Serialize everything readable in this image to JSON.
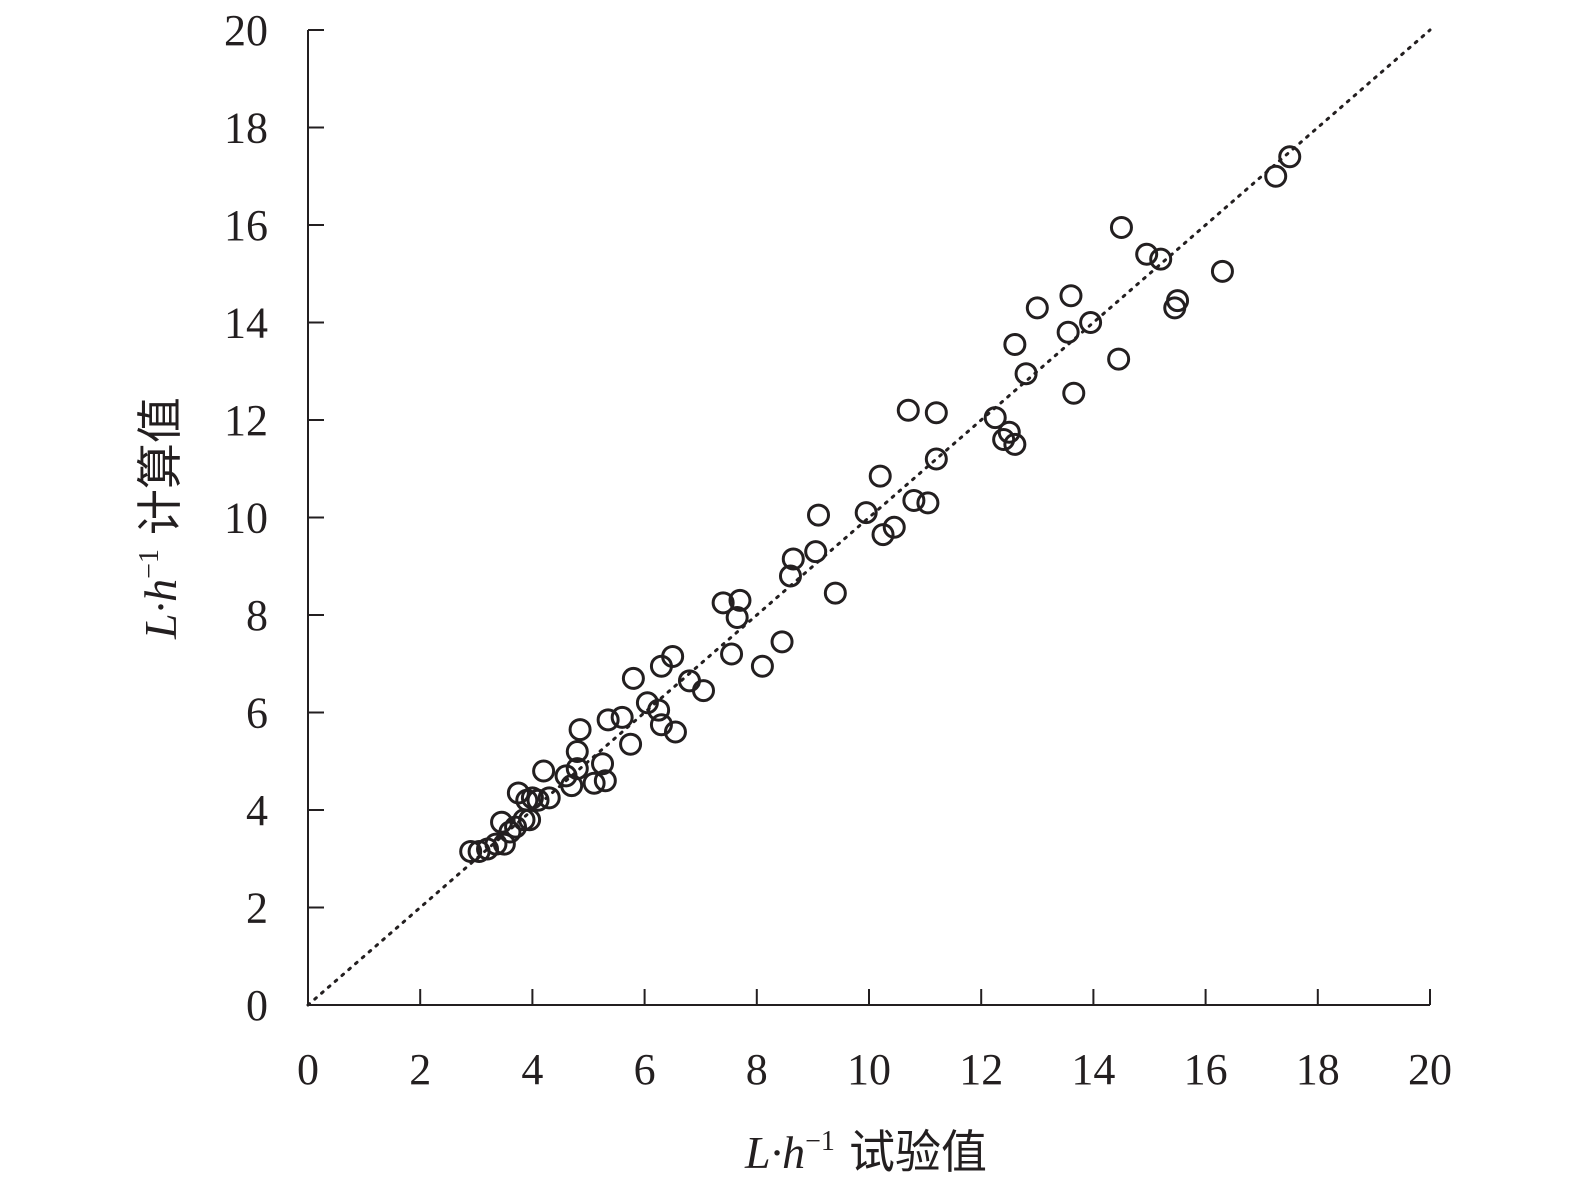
{
  "chart_data": {
    "type": "scatter",
    "title": "",
    "xlabel": {
      "var": "L·h",
      "sup": "−1",
      "text": "试验值"
    },
    "ylabel": {
      "var": "L·h",
      "sup": "−1",
      "text": "计算值"
    },
    "xlim": [
      0,
      20
    ],
    "ylim": [
      0,
      20
    ],
    "xticks": [
      "0",
      "2",
      "4",
      "6",
      "8",
      "10",
      "12",
      "14",
      "16",
      "18",
      "20"
    ],
    "yticks": [
      "0",
      "2",
      "4",
      "6",
      "8",
      "10",
      "12",
      "14",
      "16",
      "18",
      "20"
    ],
    "grid": false,
    "legend": "none",
    "reference_line": {
      "style": "dotted",
      "from": [
        0,
        0
      ],
      "to": [
        20,
        20
      ]
    },
    "colors": {
      "ink": "#231f20",
      "background": "#ffffff"
    },
    "points": [
      [
        2.9,
        3.15
      ],
      [
        3.05,
        3.15
      ],
      [
        3.2,
        3.2
      ],
      [
        3.35,
        3.3
      ],
      [
        3.45,
        3.75
      ],
      [
        3.5,
        3.3
      ],
      [
        3.6,
        3.55
      ],
      [
        3.7,
        3.65
      ],
      [
        3.75,
        4.35
      ],
      [
        3.85,
        3.8
      ],
      [
        3.9,
        4.2
      ],
      [
        3.95,
        3.8
      ],
      [
        4.0,
        4.25
      ],
      [
        4.1,
        4.2
      ],
      [
        4.2,
        4.8
      ],
      [
        4.3,
        4.25
      ],
      [
        4.6,
        4.7
      ],
      [
        4.7,
        4.5
      ],
      [
        4.8,
        4.85
      ],
      [
        4.8,
        5.2
      ],
      [
        4.85,
        5.65
      ],
      [
        5.1,
        4.55
      ],
      [
        5.25,
        4.95
      ],
      [
        5.3,
        4.6
      ],
      [
        5.35,
        5.85
      ],
      [
        5.6,
        5.9
      ],
      [
        5.75,
        5.35
      ],
      [
        5.8,
        6.7
      ],
      [
        6.05,
        6.2
      ],
      [
        6.25,
        6.05
      ],
      [
        6.3,
        5.75
      ],
      [
        6.3,
        6.95
      ],
      [
        6.5,
        7.15
      ],
      [
        6.55,
        5.6
      ],
      [
        6.8,
        6.65
      ],
      [
        7.05,
        6.45
      ],
      [
        7.4,
        8.25
      ],
      [
        7.55,
        7.2
      ],
      [
        7.65,
        7.95
      ],
      [
        7.7,
        8.3
      ],
      [
        8.1,
        6.95
      ],
      [
        8.45,
        7.45
      ],
      [
        8.6,
        8.8
      ],
      [
        8.65,
        9.15
      ],
      [
        9.05,
        9.3
      ],
      [
        9.1,
        10.05
      ],
      [
        9.4,
        8.45
      ],
      [
        9.95,
        10.1
      ],
      [
        10.2,
        10.85
      ],
      [
        10.25,
        9.65
      ],
      [
        10.45,
        9.8
      ],
      [
        10.7,
        12.2
      ],
      [
        10.8,
        10.35
      ],
      [
        11.05,
        10.3
      ],
      [
        11.2,
        12.15
      ],
      [
        11.2,
        11.2
      ],
      [
        12.25,
        12.05
      ],
      [
        12.4,
        11.6
      ],
      [
        12.5,
        11.75
      ],
      [
        12.6,
        11.5
      ],
      [
        12.6,
        13.55
      ],
      [
        12.8,
        12.95
      ],
      [
        13.0,
        14.3
      ],
      [
        13.55,
        13.8
      ],
      [
        13.6,
        14.55
      ],
      [
        13.65,
        12.55
      ],
      [
        13.95,
        14.0
      ],
      [
        14.45,
        13.25
      ],
      [
        14.5,
        15.95
      ],
      [
        14.95,
        15.4
      ],
      [
        15.2,
        15.3
      ],
      [
        15.45,
        14.3
      ],
      [
        15.5,
        14.45
      ],
      [
        16.3,
        15.05
      ],
      [
        17.25,
        17.0
      ],
      [
        17.5,
        17.4
      ]
    ]
  }
}
